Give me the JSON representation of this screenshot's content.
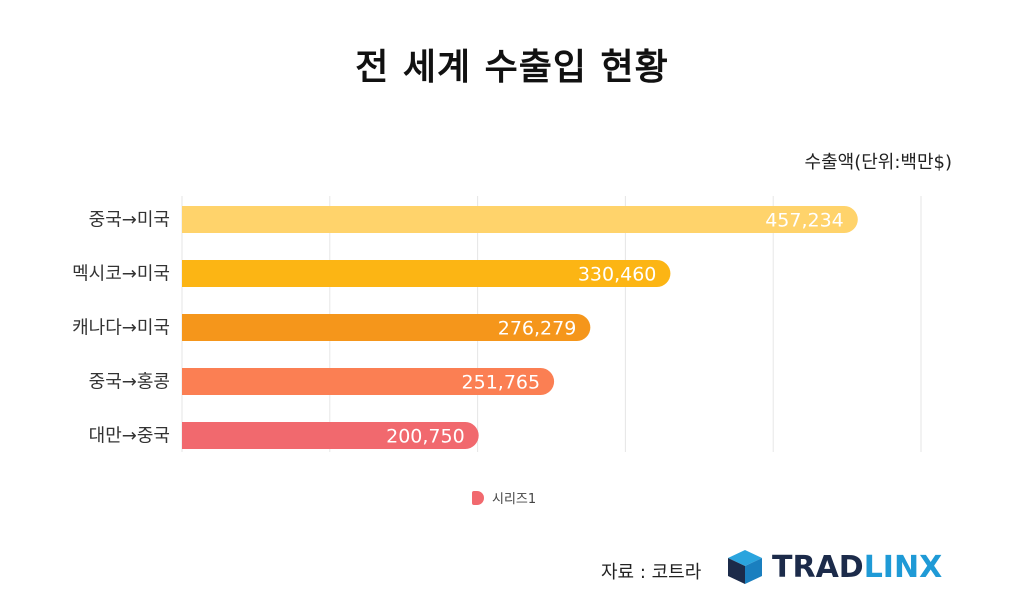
{
  "title": "전 세계 수출입 현황",
  "unit_label": "수출액(단위:백만$)",
  "source": "자료 : 코트라",
  "logo": {
    "part1": "TRAD",
    "part2": "LINX"
  },
  "chart_data": {
    "type": "bar",
    "orientation": "horizontal",
    "categories": [
      "중국→미국",
      "멕시코→미국",
      "캐나다→미국",
      "중국→홍콩",
      "대만→중국"
    ],
    "series": [
      {
        "name": "시리즈1",
        "values": [
          457234,
          330460,
          276279,
          251765,
          200750
        ]
      }
    ],
    "data_labels": [
      "457,234",
      "330,460",
      "276,279",
      "251,765",
      "200,750"
    ],
    "xlim": [
      0,
      500000
    ],
    "grid": true,
    "legend": "bottom",
    "colors": [
      "#ffd36b",
      "#fcb514",
      "#f5961b",
      "#fb7f53",
      "#f1696e"
    ]
  }
}
